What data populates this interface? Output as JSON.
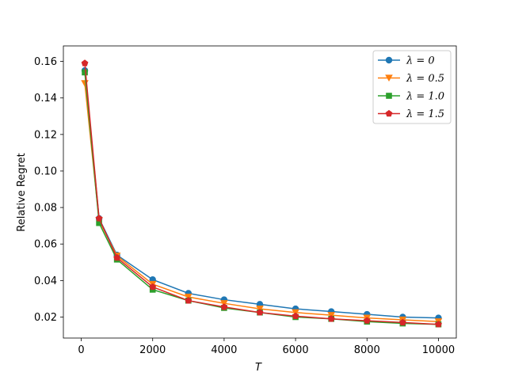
{
  "chart_data": {
    "type": "line",
    "title": "",
    "xlabel": "T",
    "ylabel": "Relative Regret",
    "xlim": [
      -500,
      10500
    ],
    "ylim": [
      0.0085,
      0.1685
    ],
    "xticks": [
      0,
      2000,
      4000,
      6000,
      8000,
      10000
    ],
    "xtick_labels": [
      "0",
      "2000",
      "4000",
      "6000",
      "8000",
      "10000"
    ],
    "yticks": [
      0.02,
      0.04,
      0.06,
      0.08,
      0.1,
      0.12,
      0.14,
      0.16
    ],
    "ytick_labels": [
      "0.02",
      "0.04",
      "0.06",
      "0.08",
      "0.10",
      "0.12",
      "0.14",
      "0.16"
    ],
    "grid": false,
    "legend_position": "top-right",
    "x": [
      100,
      500,
      1000,
      2000,
      3000,
      4000,
      5000,
      6000,
      7000,
      8000,
      9000,
      10000
    ],
    "series": [
      {
        "name": "λ = 0",
        "color": "#1f77b4",
        "marker": "circle",
        "values": [
          0.155,
          0.074,
          0.054,
          0.0405,
          0.033,
          0.0295,
          0.027,
          0.0245,
          0.023,
          0.0215,
          0.02,
          0.0195
        ]
      },
      {
        "name": "λ = 0.5",
        "color": "#ff7f0e",
        "marker": "triangle-down",
        "values": [
          0.148,
          0.073,
          0.0535,
          0.038,
          0.031,
          0.0275,
          0.0245,
          0.0225,
          0.021,
          0.0195,
          0.0185,
          0.0175
        ]
      },
      {
        "name": "λ = 1.0",
        "color": "#2ca02c",
        "marker": "square",
        "values": [
          0.154,
          0.0715,
          0.0515,
          0.035,
          0.029,
          0.025,
          0.0225,
          0.02,
          0.019,
          0.0175,
          0.0165,
          0.016
        ]
      },
      {
        "name": "λ = 1.5",
        "color": "#d62728",
        "marker": "pentagon",
        "values": [
          0.159,
          0.074,
          0.0525,
          0.0365,
          0.029,
          0.0255,
          0.0225,
          0.0205,
          0.019,
          0.018,
          0.017,
          0.016
        ]
      }
    ]
  }
}
